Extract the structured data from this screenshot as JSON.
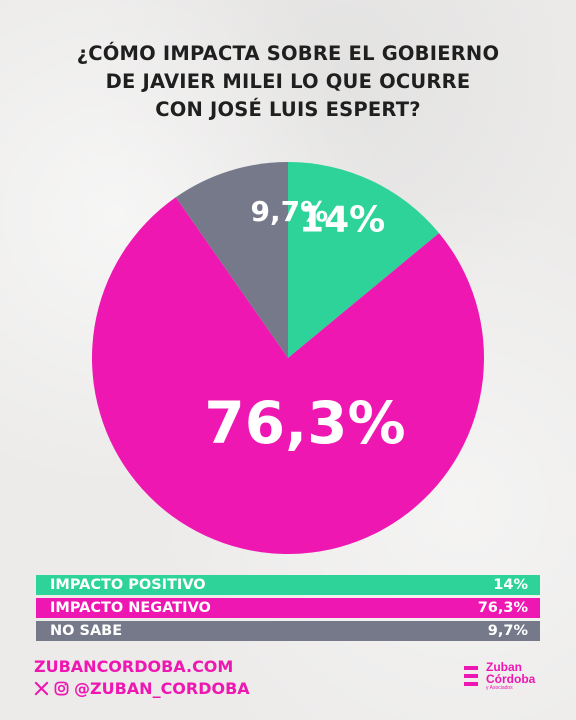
{
  "title_lines": [
    "¿CÓMO IMPACTA SOBRE EL GOBIERNO",
    "DE JAVIER MILEI LO QUE OCURRE",
    "CON JOSÉ LUIS ESPERT?"
  ],
  "colors": {
    "positive": "#2ed39a",
    "negative": "#ee17b1",
    "unknown": "#75798a",
    "text_dark": "#1f1f1f",
    "accent": "#ee17b1"
  },
  "chart_data": {
    "type": "pie",
    "title": "¿CÓMO IMPACTA SOBRE EL GOBIERNO DE JAVIER MILEI LO QUE OCURRE CON JOSÉ LUIS ESPERT?",
    "slices": [
      {
        "label": "IMPACTO POSITIVO",
        "value": 14,
        "display": "14%",
        "color": "#2ed39a"
      },
      {
        "label": "IMPACTO NEGATIVO",
        "value": 76.3,
        "display": "76,3%",
        "color": "#ee17b1"
      },
      {
        "label": "NO SABE",
        "value": 9.7,
        "display": "9,7%",
        "color": "#75798a"
      }
    ],
    "legend_placement": "bottom"
  },
  "legend": [
    {
      "label": "IMPACTO POSITIVO",
      "value": "14%"
    },
    {
      "label": "IMPACTO NEGATIVO",
      "value": "76,3%"
    },
    {
      "label": "NO SABE",
      "value": "9,7%"
    }
  ],
  "footer": {
    "website": "ZUBANCORDOBA.COM",
    "handle": "@ZUBAN_CORDOBA",
    "icons": [
      "x-icon",
      "instagram-icon"
    ]
  },
  "logo": {
    "line1": "Zuban",
    "line2": "Córdoba",
    "line3": "y Asociados"
  }
}
